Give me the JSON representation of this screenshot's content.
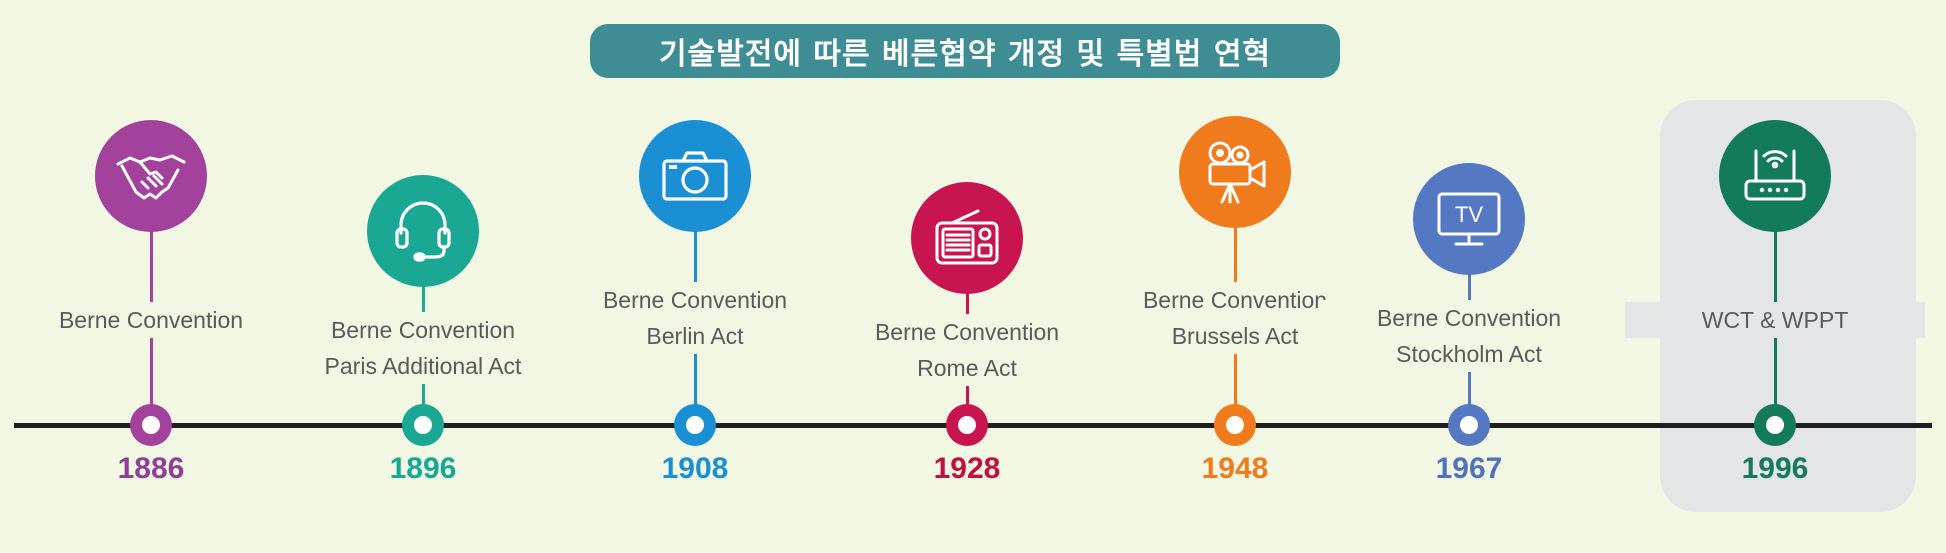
{
  "title": "기술발전에 따른 베른협약 개정 및 특별법 연혁",
  "milestones": [
    {
      "year": "1886",
      "lines": [
        "Berne Convention"
      ],
      "icon": "handshake-icon",
      "color": "#a3429d",
      "year_color": "#8f3f98"
    },
    {
      "year": "1896",
      "lines": [
        "Berne Convention",
        "Paris Additional Act"
      ],
      "icon": "headset-icon",
      "color": "#1aa894",
      "year_color": "#15a892"
    },
    {
      "year": "1908",
      "lines": [
        "Berne Convention",
        "Berlin Act"
      ],
      "icon": "camera-icon",
      "color": "#1b8fd4",
      "year_color": "#1b8fd4"
    },
    {
      "year": "1928",
      "lines": [
        "Berne Convention",
        "Rome Act"
      ],
      "icon": "radio-icon",
      "color": "#c8144f",
      "year_color": "#c01040"
    },
    {
      "year": "1948",
      "lines": [
        "Berne Convention",
        "Brussels Act"
      ],
      "icon": "film-projector-icon",
      "color": "#f07b1d",
      "year_color": "#f07b1d"
    },
    {
      "year": "1967",
      "lines": [
        "Berne Convention",
        "Stockholm Act"
      ],
      "icon": "tv-icon",
      "color": "#5578c2",
      "year_color": "#4f73bd"
    },
    {
      "year": "1996",
      "lines": [
        "WCT & WPPT"
      ],
      "icon": "wifi-router-icon",
      "color": "#137a5a",
      "year_color": "#137a5a"
    }
  ],
  "icon_glyphs": {
    "tv_text": "TV"
  }
}
